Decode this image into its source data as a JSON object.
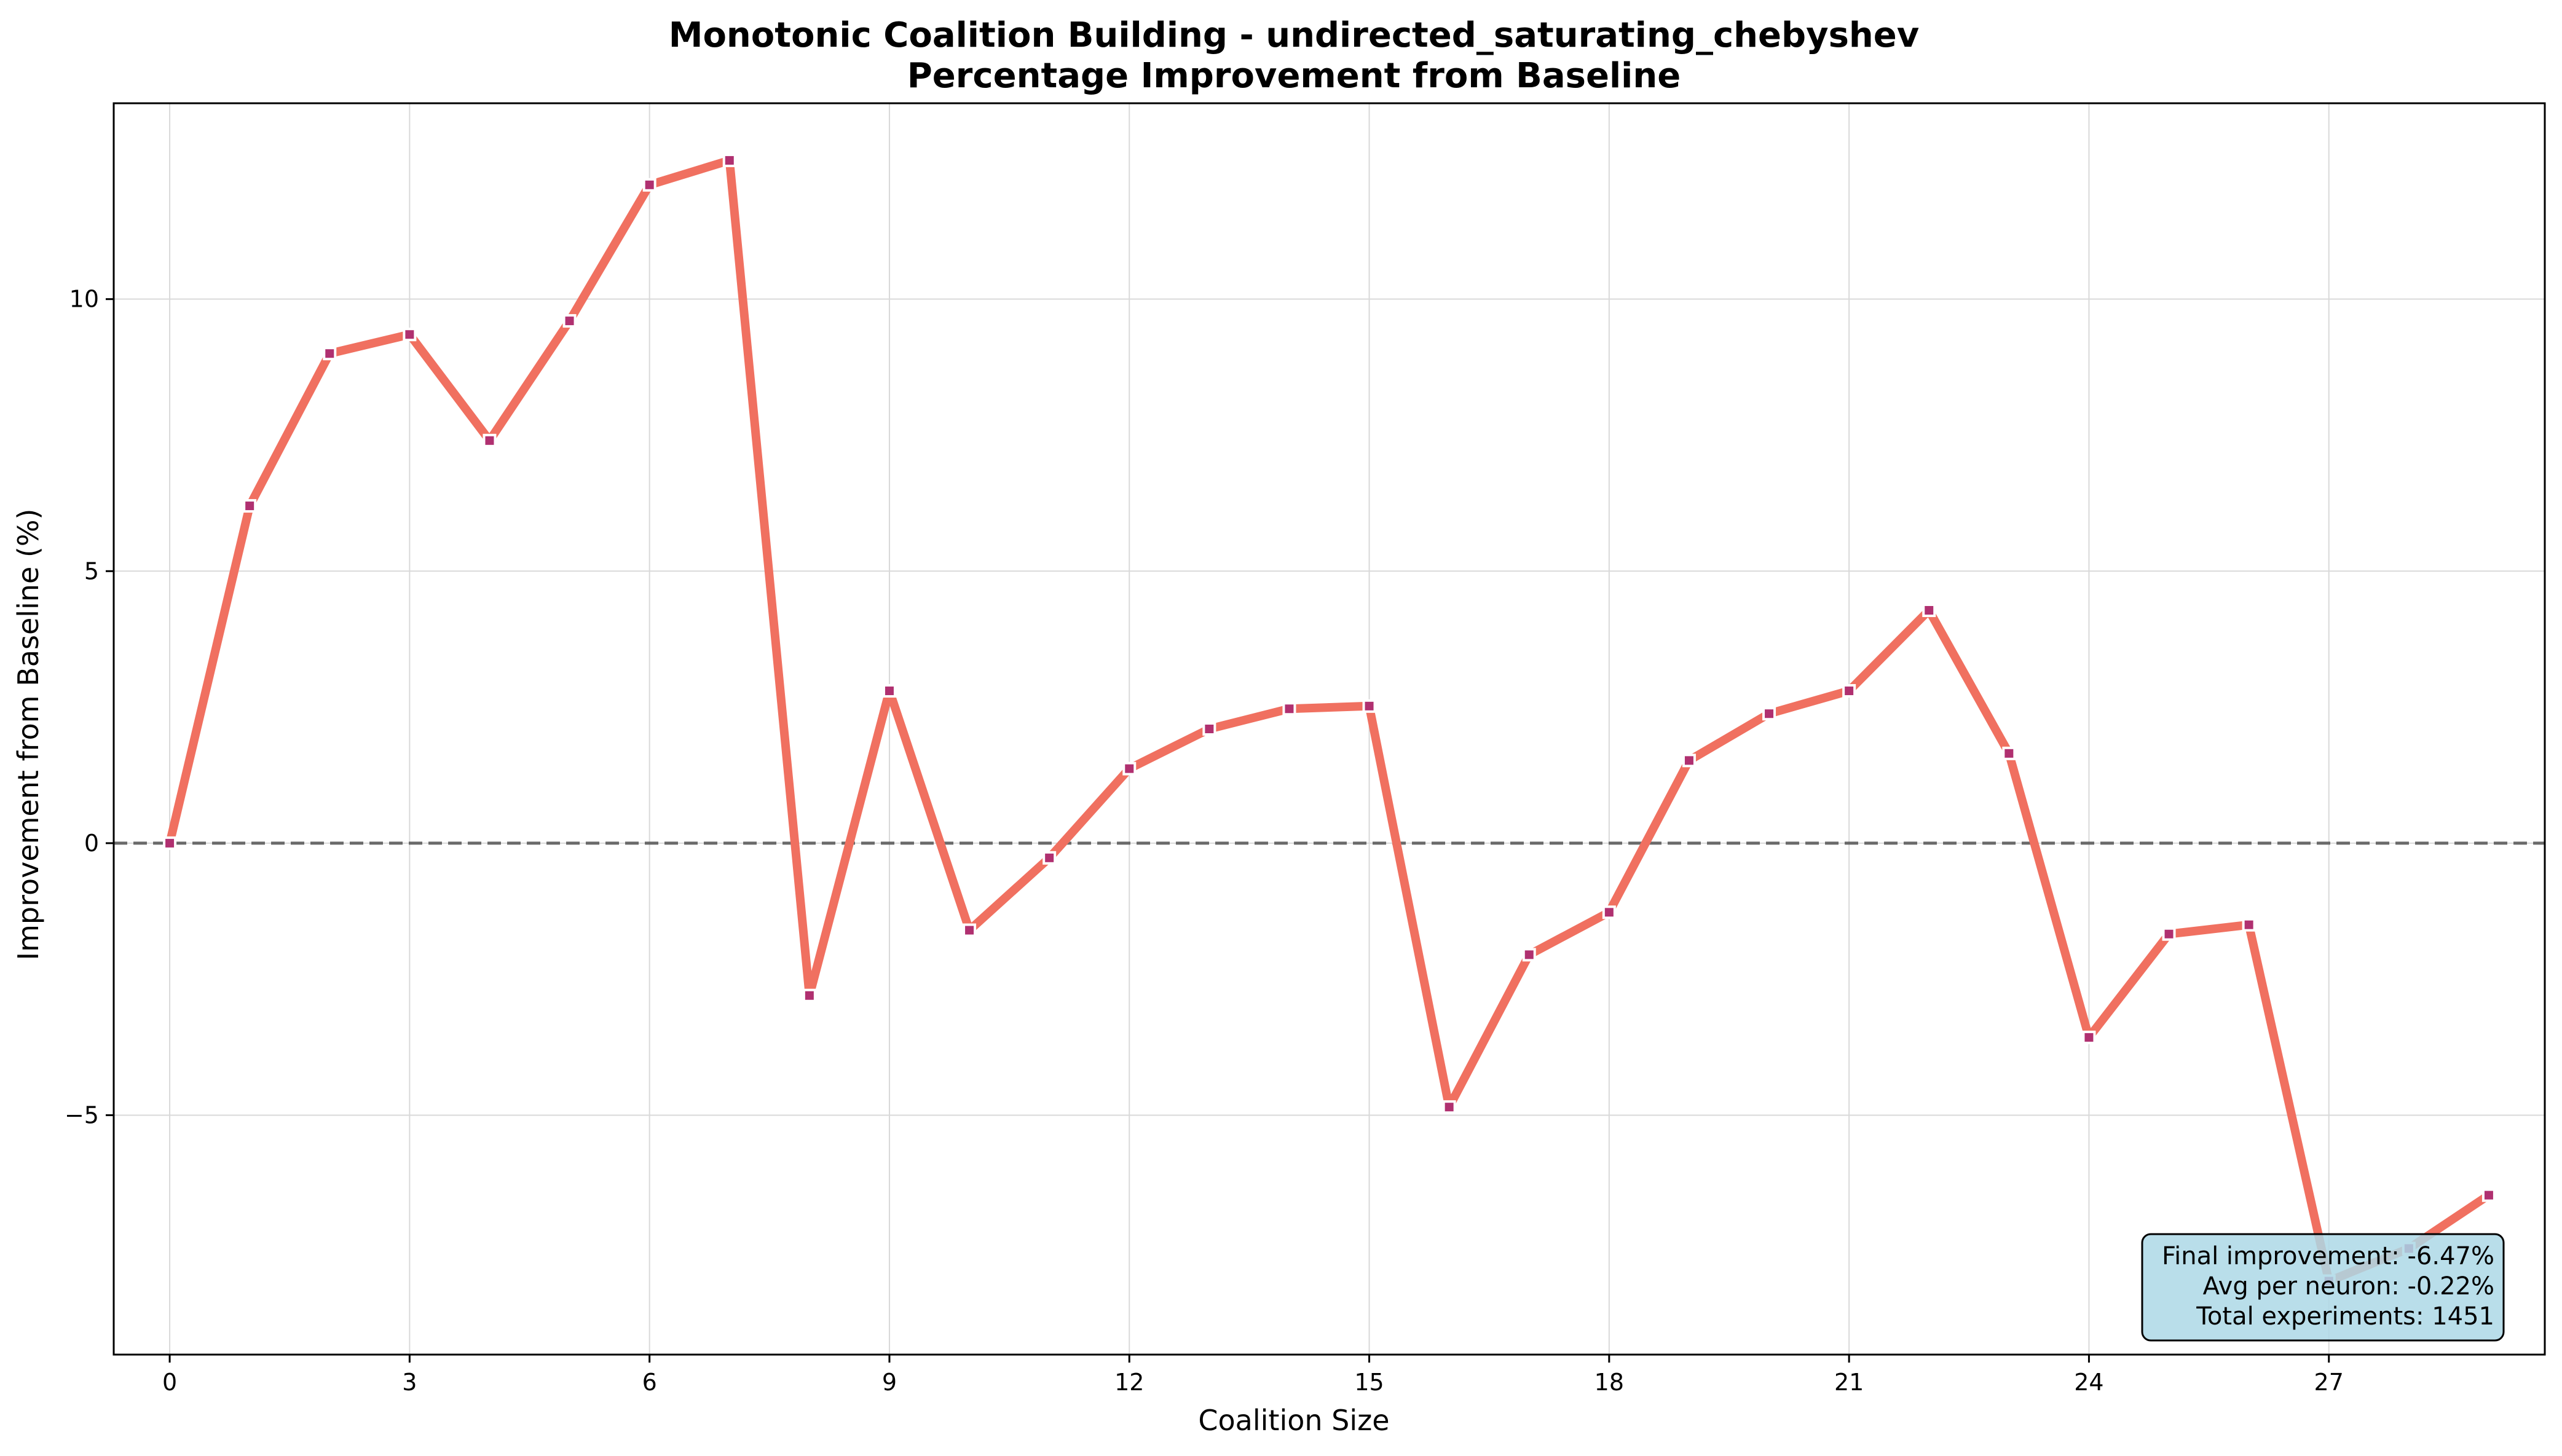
{
  "chart_data": {
    "type": "line",
    "title": "Monotonic Coalition Building - undirected_saturating_chebyshev",
    "subtitle": "Percentage Improvement from Baseline",
    "xlabel": "Coalition Size",
    "ylabel": "Improvement from Baseline (%)",
    "xlim": [
      -0.7,
      29.7
    ],
    "ylim": [
      -9.4,
      13.6
    ],
    "xticks": [
      0,
      3,
      6,
      9,
      12,
      15,
      18,
      21,
      24,
      27
    ],
    "yticks": [
      -5,
      0,
      5,
      10
    ],
    "ytick_labels": [
      "−5",
      "0",
      "5",
      "10"
    ],
    "grid": true,
    "baseline": 0,
    "series": [
      {
        "line_color": "#f07060",
        "marker_color": "#b03070",
        "x": [
          0,
          1,
          2,
          3,
          4,
          5,
          6,
          7,
          8,
          9,
          10,
          11,
          12,
          13,
          14,
          15,
          16,
          17,
          18,
          19,
          20,
          21,
          22,
          23,
          24,
          25,
          26,
          27,
          28,
          29
        ],
        "y": [
          0,
          6.2,
          9.0,
          9.35,
          7.4,
          9.6,
          12.1,
          12.55,
          -2.8,
          2.8,
          -1.6,
          -0.27,
          1.37,
          2.1,
          2.47,
          2.52,
          -4.85,
          -2.05,
          -1.27,
          1.52,
          2.38,
          2.8,
          4.28,
          1.65,
          -3.57,
          -1.67,
          -1.5,
          -8.05,
          -7.45,
          -6.47
        ]
      }
    ],
    "annotation": {
      "lines": [
        "Final improvement: -6.47%",
        "Avg per neuron: -0.22%",
        "Total experiments: 1451"
      ],
      "background": "#add8e6",
      "placement": "bottom-right"
    }
  }
}
